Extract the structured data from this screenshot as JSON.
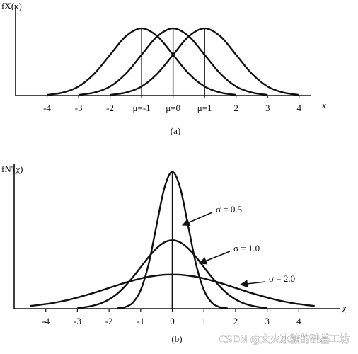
{
  "chart_data": [
    {
      "type": "line",
      "y_label": "fX(x)",
      "x_label": "x",
      "caption": "(a)",
      "x": [
        -4,
        -3.5,
        -3,
        -2.5,
        -2,
        -1.5,
        -1,
        -0.5,
        0,
        0.5,
        1,
        1.5,
        2,
        2.5,
        3,
        3.5,
        4
      ],
      "series": [
        {
          "color": "#111111",
          "values": [
            0.004,
            0.018,
            0.054,
            0.13,
            0.242,
            0.352,
            0.399,
            0.352,
            0.242,
            0.13,
            0.054,
            0.018,
            0.004,
            null,
            null,
            null,
            null
          ]
        },
        {
          "color": "#111111",
          "values": [
            null,
            null,
            0.004,
            0.018,
            0.054,
            0.13,
            0.242,
            0.352,
            0.399,
            0.352,
            0.242,
            0.13,
            0.054,
            0.018,
            0.004,
            null,
            null
          ]
        },
        {
          "color": "#111111",
          "values": [
            null,
            null,
            null,
            null,
            0.004,
            0.018,
            0.054,
            0.13,
            0.242,
            0.352,
            0.399,
            0.352,
            0.242,
            0.13,
            0.054,
            0.018,
            0.004
          ]
        }
      ],
      "xlim": [
        -5,
        4.5
      ],
      "ylim": [
        0,
        0.5
      ],
      "xticks": [
        -4,
        -3,
        -2,
        {
          "value": -1,
          "label": "μ=-1"
        },
        {
          "value": 0,
          "label": "μ=0"
        },
        {
          "value": 1,
          "label": "μ=1"
        },
        2,
        3,
        4
      ],
      "grid": false
    },
    {
      "type": "line",
      "y_label": "fN'(χ)",
      "x_label": "χ",
      "caption": "(b)",
      "x": [
        -4.5,
        -4.25,
        -4,
        -3.75,
        -3.5,
        -3.25,
        -3,
        -2.75,
        -2.5,
        -2.25,
        -2,
        -1.75,
        -1.5,
        -1.25,
        -1,
        -0.75,
        -0.5,
        -0.25,
        0,
        0.25,
        0.5,
        0.75,
        1,
        1.25,
        1.5,
        1.75,
        2,
        2.25,
        2.5,
        2.75,
        3,
        3.25,
        3.5,
        3.75,
        4,
        4.25,
        4.5
      ],
      "series": [
        {
          "color": "#111111",
          "values": [
            null,
            null,
            null,
            null,
            null,
            null,
            null,
            null,
            null,
            null,
            null,
            0.002,
            0.009,
            0.035,
            0.108,
            0.259,
            0.484,
            0.704,
            0.798,
            0.704,
            0.484,
            0.259,
            0.108,
            0.035,
            0.009,
            0.002,
            null,
            null,
            null,
            null,
            null,
            null,
            null,
            null,
            null,
            null,
            null
          ]
        },
        {
          "color": "#111111",
          "values": [
            null,
            null,
            null,
            null,
            null,
            null,
            0.004,
            0.009,
            0.018,
            0.032,
            0.054,
            0.086,
            0.13,
            0.183,
            0.242,
            0.301,
            0.352,
            0.387,
            0.399,
            0.387,
            0.352,
            0.301,
            0.242,
            0.183,
            0.13,
            0.086,
            0.054,
            0.032,
            0.018,
            0.009,
            0.004,
            null,
            null,
            null,
            null,
            null,
            null
          ]
        },
        {
          "color": "#111111",
          "values": [
            0.016,
            0.021,
            0.027,
            0.034,
            0.043,
            0.053,
            0.065,
            0.078,
            0.091,
            0.106,
            0.121,
            0.136,
            0.151,
            0.164,
            0.176,
            0.186,
            0.193,
            0.198,
            0.199,
            0.198,
            0.193,
            0.186,
            0.176,
            0.164,
            0.151,
            0.136,
            0.121,
            0.106,
            0.091,
            0.078,
            0.065,
            0.053,
            0.043,
            0.034,
            0.027,
            0.021,
            0.016
          ]
        }
      ],
      "annotations": [
        "σ = 0.5",
        "σ = 1.0",
        "σ = 2.0"
      ],
      "xlim": [
        -5,
        5.2
      ],
      "ylim": [
        0,
        0.9
      ],
      "xticks": [
        -4,
        -3,
        -2,
        -1,
        0,
        1,
        2,
        3,
        4
      ],
      "grid": false
    }
  ],
  "watermark": "CSDN @文火冰糖的硅基工坊"
}
